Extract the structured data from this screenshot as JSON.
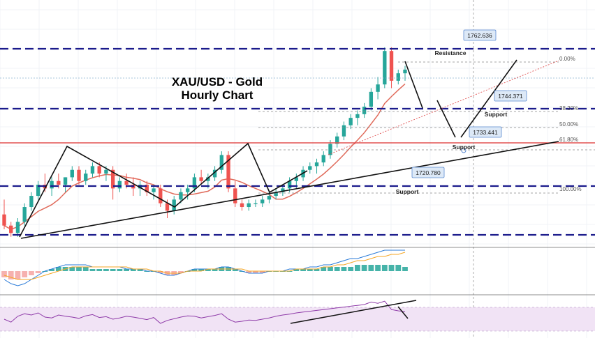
{
  "title_line1": "XAU/USD - Gold",
  "title_line2": "Hourly Chart",
  "colors": {
    "up": "#26a69a",
    "down": "#ef5350",
    "ma": "#e06a5a",
    "dashed_level": "#1b1b8c",
    "resistance_line": "#e25050",
    "tag_bg": "#dde9f7",
    "tag_border": "#5b8ad1",
    "rsi_band": "#f1e3f5",
    "rsi_line": "#8e3aa8",
    "macd_line": "#2b7bd8",
    "signal_line": "#f5a623"
  },
  "chart_data": [
    {
      "type": "candlestick",
      "title": "XAU/USD - Gold Hourly Chart",
      "ylim": [
        1712,
        1768
      ],
      "levels": [
        {
          "price": 1762.636,
          "tag": "1762.636",
          "label": "Resistance"
        },
        {
          "price": 1744.371,
          "tag": "1744.371",
          "label": "Support"
        },
        {
          "price": 1733.441,
          "tag": "1733.441",
          "label": "Support"
        },
        {
          "price": 1720.78,
          "tag": "1720.780",
          "label": "Support"
        }
      ],
      "fibonacci": [
        "0.00%",
        "38.20%",
        "50.00%",
        "61.80%",
        "100.00%"
      ],
      "ohlc": [
        [
          1718,
          1722,
          1714,
          1715
        ],
        [
          1715,
          1716,
          1712,
          1713
        ],
        [
          1713,
          1717,
          1712,
          1716
        ],
        [
          1716,
          1721,
          1715,
          1720
        ],
        [
          1720,
          1724,
          1719,
          1723
        ],
        [
          1723,
          1727,
          1722,
          1726
        ],
        [
          1726,
          1729,
          1724,
          1725
        ],
        [
          1725,
          1728,
          1723,
          1727
        ],
        [
          1727,
          1729,
          1725,
          1726
        ],
        [
          1726,
          1728,
          1724,
          1728
        ],
        [
          1728,
          1731,
          1727,
          1730
        ],
        [
          1730,
          1731,
          1726,
          1727
        ],
        [
          1727,
          1730,
          1726,
          1729
        ],
        [
          1729,
          1732,
          1728,
          1731
        ],
        [
          1731,
          1732,
          1728,
          1729
        ],
        [
          1729,
          1731,
          1727,
          1730
        ],
        [
          1730,
          1731,
          1722,
          1725
        ],
        [
          1725,
          1728,
          1724,
          1727
        ],
        [
          1727,
          1729,
          1725,
          1726
        ],
        [
          1726,
          1728,
          1723,
          1725
        ],
        [
          1725,
          1727,
          1723,
          1726
        ],
        [
          1726,
          1727,
          1723,
          1724
        ],
        [
          1724,
          1726,
          1722,
          1725
        ],
        [
          1725,
          1726,
          1720,
          1721
        ],
        [
          1721,
          1722,
          1717,
          1719
        ],
        [
          1719,
          1723,
          1718,
          1722
        ],
        [
          1722,
          1725,
          1721,
          1724
        ],
        [
          1724,
          1726,
          1722,
          1725
        ],
        [
          1725,
          1729,
          1724,
          1728
        ],
        [
          1728,
          1730,
          1726,
          1727
        ],
        [
          1727,
          1729,
          1725,
          1728
        ],
        [
          1728,
          1731,
          1727,
          1730
        ],
        [
          1730,
          1735,
          1729,
          1734
        ],
        [
          1734,
          1735,
          1724,
          1725
        ],
        [
          1725,
          1727,
          1720,
          1721
        ],
        [
          1721,
          1722,
          1719,
          1720
        ],
        [
          1720,
          1722,
          1719,
          1721
        ],
        [
          1721,
          1722,
          1720,
          1721
        ],
        [
          1721,
          1723,
          1720,
          1722
        ],
        [
          1722,
          1724,
          1721,
          1723
        ],
        [
          1723,
          1725,
          1722,
          1724
        ],
        [
          1724,
          1726,
          1723,
          1725
        ],
        [
          1725,
          1728,
          1724,
          1727
        ],
        [
          1727,
          1729,
          1725,
          1728
        ],
        [
          1728,
          1731,
          1727,
          1730
        ],
        [
          1730,
          1732,
          1729,
          1731
        ],
        [
          1731,
          1733,
          1729,
          1732
        ],
        [
          1732,
          1735,
          1731,
          1734
        ],
        [
          1734,
          1738,
          1733,
          1737
        ],
        [
          1737,
          1740,
          1736,
          1739
        ],
        [
          1739,
          1743,
          1738,
          1742
        ],
        [
          1742,
          1745,
          1741,
          1744
        ],
        [
          1744,
          1746,
          1742,
          1745
        ],
        [
          1745,
          1748,
          1744,
          1747
        ],
        [
          1747,
          1752,
          1746,
          1751
        ],
        [
          1751,
          1755,
          1749,
          1753
        ],
        [
          1753,
          1763,
          1752,
          1762
        ],
        [
          1762,
          1763,
          1752,
          1754
        ],
        [
          1754,
          1757,
          1753,
          1756
        ],
        [
          1756,
          1758,
          1754,
          1757
        ]
      ]
    },
    {
      "type": "macd",
      "histogram": [
        -3,
        -4,
        -4,
        -3,
        -2,
        -1,
        0,
        1,
        2,
        2,
        2,
        2,
        2,
        1,
        1,
        1,
        1,
        1,
        1,
        1,
        1,
        0,
        0,
        -1,
        -2,
        -2,
        -1,
        0,
        1,
        1,
        1,
        1,
        2,
        2,
        1,
        0,
        -1,
        -1,
        -1,
        0,
        0,
        0,
        0,
        1,
        1,
        1,
        1,
        2,
        2,
        2,
        2,
        2,
        3,
        3,
        3,
        3,
        3,
        3,
        3,
        2
      ],
      "macd": [
        -4,
        -6,
        -7,
        -6,
        -4,
        -2,
        0,
        1,
        2,
        3,
        3,
        3,
        3,
        2,
        2,
        2,
        2,
        2,
        1,
        1,
        1,
        0,
        0,
        -1,
        -2,
        -2,
        -1,
        0,
        1,
        1,
        1,
        1,
        2,
        2,
        1,
        0,
        -1,
        -1,
        -1,
        0,
        0,
        0,
        1,
        1,
        1,
        2,
        2,
        3,
        3,
        4,
        5,
        6,
        6,
        7,
        8,
        9,
        10,
        10,
        10,
        10
      ],
      "signal": [
        -2,
        -3,
        -4,
        -4,
        -4,
        -3,
        -2,
        -1,
        0,
        1,
        2,
        2,
        2,
        2,
        2,
        2,
        2,
        2,
        2,
        1,
        1,
        1,
        0,
        0,
        -1,
        -1,
        -1,
        0,
        0,
        0,
        1,
        1,
        1,
        1,
        1,
        1,
        0,
        0,
        0,
        0,
        0,
        0,
        0,
        1,
        1,
        1,
        1,
        2,
        2,
        3,
        3,
        4,
        5,
        5,
        6,
        7,
        7,
        8,
        8,
        9
      ]
    },
    {
      "type": "rsi",
      "ylim": [
        0,
        100
      ],
      "band": [
        30,
        70
      ],
      "values": [
        45,
        38,
        52,
        58,
        55,
        60,
        50,
        48,
        55,
        52,
        50,
        47,
        53,
        56,
        49,
        51,
        45,
        48,
        52,
        50,
        47,
        44,
        49,
        35,
        42,
        46,
        50,
        53,
        52,
        48,
        51,
        54,
        58,
        45,
        38,
        40,
        43,
        42,
        45,
        48,
        52,
        55,
        57,
        60,
        62,
        64,
        66,
        68,
        70,
        72,
        74,
        76,
        78,
        80,
        86,
        83,
        88,
        68,
        65,
        63
      ]
    }
  ]
}
